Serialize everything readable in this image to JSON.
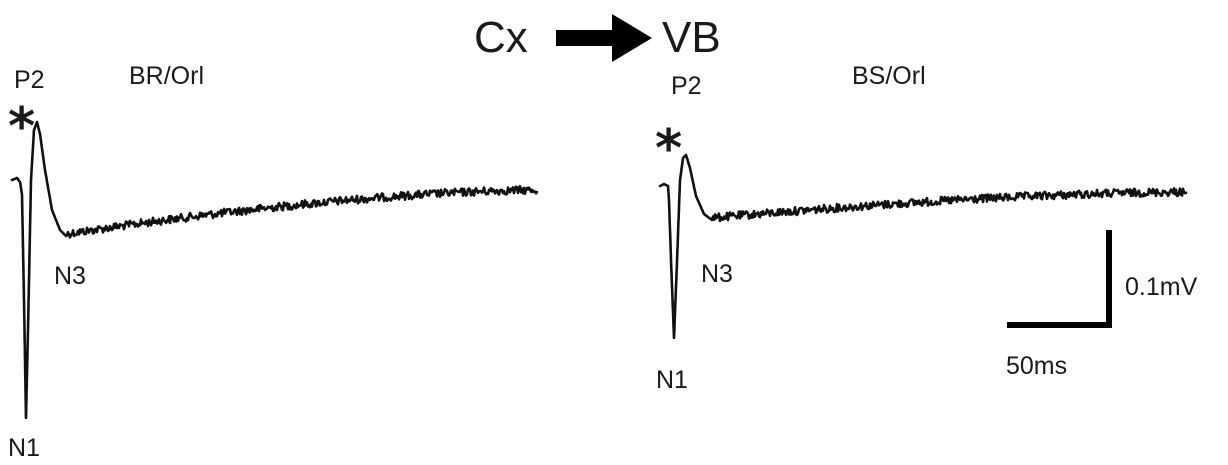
{
  "header": {
    "source": "Cx",
    "target": "VB",
    "arrow_icon": "right-arrow-icon"
  },
  "panels": [
    {
      "condition": "BR/Orl",
      "peaks": {
        "p2": "P2",
        "n1": "N1",
        "n3": "N3"
      },
      "marker": "*",
      "marker_icon": "asterisk-icon"
    },
    {
      "condition": "BS/Orl",
      "peaks": {
        "p2": "P2",
        "n1": "N1",
        "n3": "N3"
      },
      "marker": "*",
      "marker_icon": "asterisk-icon"
    }
  ],
  "scale_bar": {
    "amplitude": "0.1mV",
    "time": "50ms"
  },
  "colors": {
    "trace": "#111111",
    "text": "#1a1a1a",
    "background": "#ffffff"
  }
}
